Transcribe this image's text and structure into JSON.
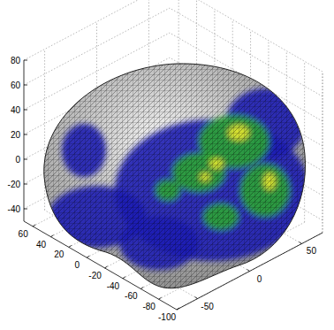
{
  "chart_data": {
    "type": "surface3d",
    "xlim": [
      -70,
      70
    ],
    "xticks": [
      -50,
      0,
      50
    ],
    "ylim": [
      -100,
      70
    ],
    "yticks": [
      -100,
      -80,
      -60,
      -40,
      -20,
      0,
      20,
      40,
      60
    ],
    "zlim": [
      -50,
      80
    ],
    "zticks": [
      -40,
      -20,
      0,
      20,
      40,
      60,
      80
    ],
    "grid": true
  }
}
